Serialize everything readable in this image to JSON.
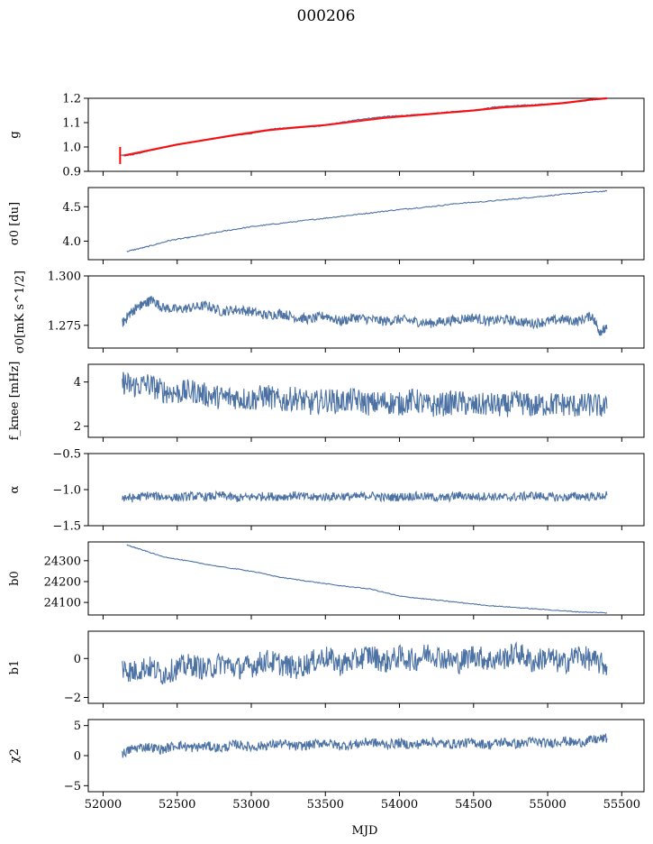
{
  "figure": {
    "title": "000206",
    "xlabel": "MJD",
    "line_color": "#4c72a4",
    "fit_color": "#ff0000"
  },
  "chart_data": [
    {
      "type": "line",
      "ylabel": "g",
      "xlim": [
        51900,
        55650
      ],
      "ylim": [
        0.9,
        1.2
      ],
      "yticks": [
        0.9,
        1.0,
        1.1,
        1.2
      ],
      "ytick_labels": [
        "0.9",
        "1.0",
        "1.1",
        "1.2"
      ],
      "series": [
        {
          "x": [
            52110,
            52200,
            52350,
            52500,
            52700,
            52850,
            53000,
            53150,
            53300,
            53450,
            53600,
            53750,
            53900,
            54050,
            54200,
            54350,
            54500,
            54650,
            54800,
            54950,
            55100,
            55250,
            55400
          ],
          "y": [
            0.965,
            0.968,
            0.99,
            1.01,
            1.03,
            1.045,
            1.055,
            1.075,
            1.08,
            1.085,
            1.1,
            1.115,
            1.125,
            1.13,
            1.135,
            1.145,
            1.15,
            1.165,
            1.17,
            1.175,
            1.18,
            1.19,
            1.2
          ]
        }
      ],
      "fit_series": {
        "x": [
          52140,
          52300,
          52500,
          52700,
          52900,
          53100,
          53300,
          53500,
          53700,
          53900,
          54100,
          54300,
          54500,
          54700,
          54900,
          55100,
          55300,
          55400
        ],
        "y": [
          0.965,
          0.985,
          1.01,
          1.03,
          1.05,
          1.068,
          1.08,
          1.09,
          1.105,
          1.12,
          1.13,
          1.14,
          1.15,
          1.163,
          1.17,
          1.18,
          1.195,
          1.2
        ]
      },
      "error_bar": {
        "x": 52115,
        "y": [
          0.93,
          1.0
        ]
      }
    },
    {
      "type": "line",
      "ylabel": "σ0 [du]",
      "xlim": [
        51900,
        55650
      ],
      "ylim": [
        3.73,
        4.78
      ],
      "yticks": [
        4.0,
        4.5
      ],
      "ytick_labels": [
        "4.0",
        "4.5"
      ],
      "series": [
        {
          "x": [
            52160,
            52300,
            52450,
            52600,
            52800,
            53000,
            53200,
            53400,
            53600,
            53800,
            54000,
            54200,
            54400,
            54600,
            54800,
            55000,
            55200,
            55400
          ],
          "y": [
            3.85,
            3.92,
            4.01,
            4.06,
            4.14,
            4.21,
            4.26,
            4.31,
            4.36,
            4.41,
            4.46,
            4.5,
            4.55,
            4.58,
            4.62,
            4.66,
            4.7,
            4.73
          ]
        }
      ]
    },
    {
      "type": "line",
      "ylabel": "σ0[mK s^1/2]",
      "xlim": [
        51900,
        55650
      ],
      "ylim": [
        1.2635,
        1.3
      ],
      "yticks": [
        1.275,
        1.3
      ],
      "ytick_labels": [
        "1.275",
        "1.300"
      ],
      "series": [
        {
          "x": [
            52130,
            52180,
            52230,
            52280,
            52330,
            52400,
            52500,
            52600,
            52700,
            52800,
            52900,
            53000,
            53100,
            53200,
            53300,
            53400,
            53500,
            53600,
            53700,
            53800,
            53900,
            54000,
            54100,
            54200,
            54300,
            54400,
            54500,
            54600,
            54700,
            54800,
            54900,
            55000,
            55100,
            55200,
            55300,
            55350,
            55400
          ],
          "y": [
            1.276,
            1.281,
            1.284,
            1.286,
            1.288,
            1.284,
            1.283,
            1.284,
            1.285,
            1.282,
            1.283,
            1.282,
            1.28,
            1.281,
            1.279,
            1.278,
            1.28,
            1.277,
            1.279,
            1.278,
            1.277,
            1.278,
            1.277,
            1.276,
            1.277,
            1.278,
            1.279,
            1.277,
            1.278,
            1.277,
            1.276,
            1.277,
            1.278,
            1.277,
            1.28,
            1.272,
            1.273
          ]
        }
      ]
    },
    {
      "type": "line",
      "ylabel": "f_knee [mHz]",
      "xlim": [
        51900,
        55650
      ],
      "ylim": [
        1.5,
        4.8
      ],
      "yticks": [
        2,
        4
      ],
      "ytick_labels": [
        "2",
        "4"
      ],
      "series": [
        {
          "x": [
            52130,
            52200,
            52300,
            52400,
            52500,
            52600,
            52700,
            52800,
            52900,
            53000,
            53100,
            53200,
            53300,
            53400,
            53500,
            53600,
            53700,
            53800,
            53900,
            54000,
            54100,
            54200,
            54300,
            54400,
            54500,
            54600,
            54700,
            54800,
            54900,
            55000,
            55100,
            55200,
            55300,
            55400
          ],
          "y": [
            4.0,
            3.8,
            3.9,
            3.6,
            3.5,
            3.6,
            3.4,
            3.3,
            3.3,
            3.2,
            3.4,
            3.1,
            3.3,
            3.0,
            3.2,
            3.1,
            3.2,
            3.0,
            3.1,
            3.0,
            3.2,
            2.9,
            3.0,
            3.1,
            2.9,
            3.0,
            2.9,
            3.1,
            2.9,
            3.0,
            3.0,
            2.9,
            3.0,
            2.8
          ]
        }
      ]
    },
    {
      "type": "line",
      "ylabel": "α",
      "xlim": [
        51900,
        55650
      ],
      "ylim": [
        -1.5,
        -0.5
      ],
      "yticks": [
        -1.5,
        -1.0,
        -0.5
      ],
      "ytick_labels": [
        "−1.5",
        "−1.0",
        "−0.5"
      ],
      "series": [
        {
          "x": [
            52130,
            52200,
            52300,
            52400,
            52500,
            52600,
            52700,
            52800,
            52900,
            53000,
            53100,
            53200,
            53300,
            53400,
            53500,
            53600,
            53700,
            53800,
            53900,
            54000,
            54100,
            54200,
            54300,
            54400,
            54500,
            54600,
            54700,
            54800,
            54900,
            55000,
            55100,
            55200,
            55300,
            55400
          ],
          "y": [
            -1.1,
            -1.12,
            -1.08,
            -1.1,
            -1.11,
            -1.09,
            -1.1,
            -1.08,
            -1.12,
            -1.1,
            -1.09,
            -1.1,
            -1.08,
            -1.11,
            -1.1,
            -1.09,
            -1.1,
            -1.08,
            -1.11,
            -1.1,
            -1.09,
            -1.1,
            -1.12,
            -1.08,
            -1.1,
            -1.09,
            -1.11,
            -1.1,
            -1.08,
            -1.1,
            -1.11,
            -1.09,
            -1.1,
            -1.08
          ]
        }
      ]
    },
    {
      "type": "line",
      "ylabel": "b0",
      "xlim": [
        51900,
        55650
      ],
      "ylim": [
        24040,
        24390
      ],
      "yticks": [
        24100,
        24200,
        24300
      ],
      "ytick_labels": [
        "24100",
        "24200",
        "24300"
      ],
      "series": [
        {
          "x": [
            52160,
            52250,
            52400,
            52600,
            52800,
            53000,
            53200,
            53400,
            53600,
            53800,
            54000,
            54200,
            54400,
            54600,
            54800,
            55000,
            55200,
            55400
          ],
          "y": [
            24375,
            24355,
            24320,
            24295,
            24270,
            24250,
            24220,
            24200,
            24180,
            24165,
            24130,
            24115,
            24100,
            24085,
            24075,
            24065,
            24055,
            24050
          ]
        }
      ]
    },
    {
      "type": "line",
      "ylabel": "b1",
      "xlim": [
        51900,
        55650
      ],
      "ylim": [
        -2.3,
        1.4
      ],
      "yticks": [
        -2,
        0
      ],
      "ytick_labels": [
        "−2",
        "0"
      ],
      "series": [
        {
          "x": [
            52130,
            52200,
            52300,
            52400,
            52500,
            52600,
            52700,
            52800,
            52900,
            53000,
            53100,
            53200,
            53300,
            53400,
            53500,
            53600,
            53700,
            53800,
            53900,
            54000,
            54100,
            54200,
            54300,
            54400,
            54500,
            54600,
            54700,
            54800,
            54900,
            55000,
            55100,
            55200,
            55300,
            55400
          ],
          "y": [
            -0.5,
            -0.7,
            -0.4,
            -0.8,
            -0.5,
            -0.3,
            -0.6,
            -0.2,
            -0.5,
            -0.4,
            -0.1,
            -0.3,
            -0.5,
            -0.2,
            0.1,
            -0.3,
            -0.1,
            0.2,
            -0.2,
            0.1,
            -0.1,
            0.3,
            0.0,
            -0.2,
            0.2,
            -0.1,
            0.0,
            0.3,
            -0.2,
            0.1,
            -0.3,
            0.2,
            -0.1,
            -0.4
          ]
        }
      ]
    },
    {
      "type": "line",
      "ylabel": "χ2",
      "xlim": [
        51900,
        55650
      ],
      "ylim": [
        -6,
        6
      ],
      "yticks": [
        -5,
        0,
        5
      ],
      "ytick_labels": [
        "−5",
        "0",
        "5"
      ],
      "series": [
        {
          "x": [
            52130,
            52200,
            52300,
            52400,
            52500,
            52600,
            52700,
            52800,
            52900,
            53000,
            53100,
            53200,
            53300,
            53400,
            53500,
            53600,
            53700,
            53800,
            53900,
            54000,
            54100,
            54200,
            54300,
            54400,
            54500,
            54600,
            54700,
            54800,
            54900,
            55000,
            55100,
            55200,
            55300,
            55400
          ],
          "y": [
            0.3,
            1.2,
            1.5,
            1.0,
            1.8,
            1.3,
            1.6,
            1.2,
            1.9,
            1.4,
            1.7,
            2.0,
            1.5,
            1.8,
            2.2,
            1.6,
            1.9,
            2.3,
            1.8,
            2.1,
            1.7,
            2.4,
            1.9,
            2.0,
            2.2,
            1.8,
            2.3,
            1.9,
            2.4,
            2.0,
            2.5,
            2.1,
            2.6,
            2.9
          ]
        }
      ]
    }
  ],
  "xaxis": {
    "xticks": [
      52000,
      52500,
      53000,
      53500,
      54000,
      54500,
      55000,
      55500
    ],
    "xtick_labels": [
      "52000",
      "52500",
      "53000",
      "53500",
      "54000",
      "54500",
      "55000",
      "55500"
    ]
  }
}
